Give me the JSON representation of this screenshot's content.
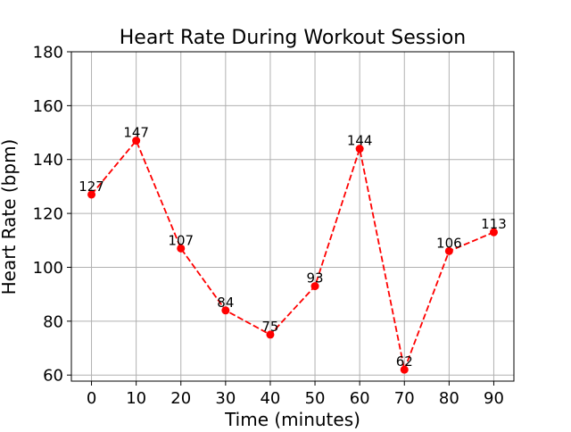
{
  "chart_data": {
    "type": "line",
    "title": "Heart Rate During Workout Session",
    "xlabel": "Time (minutes)",
    "ylabel": "Heart Rate (bpm)",
    "x": [
      0,
      10,
      20,
      30,
      40,
      50,
      60,
      70,
      80,
      90
    ],
    "series": [
      {
        "values": [
          127,
          147,
          107,
          84,
          75,
          93,
          144,
          62,
          106,
          113
        ],
        "color": "#ff0000",
        "line_style": "dashed",
        "marker": "circle"
      }
    ],
    "xticks": [
      "0",
      "10",
      "20",
      "30",
      "40",
      "50",
      "60",
      "70",
      "80",
      "90"
    ],
    "yticks": [
      "60",
      "80",
      "100",
      "120",
      "140",
      "160",
      "180"
    ],
    "xlim": [
      -4.5,
      94.5
    ],
    "ylim": [
      57.75,
      180
    ],
    "grid": true,
    "data_labels": true
  }
}
